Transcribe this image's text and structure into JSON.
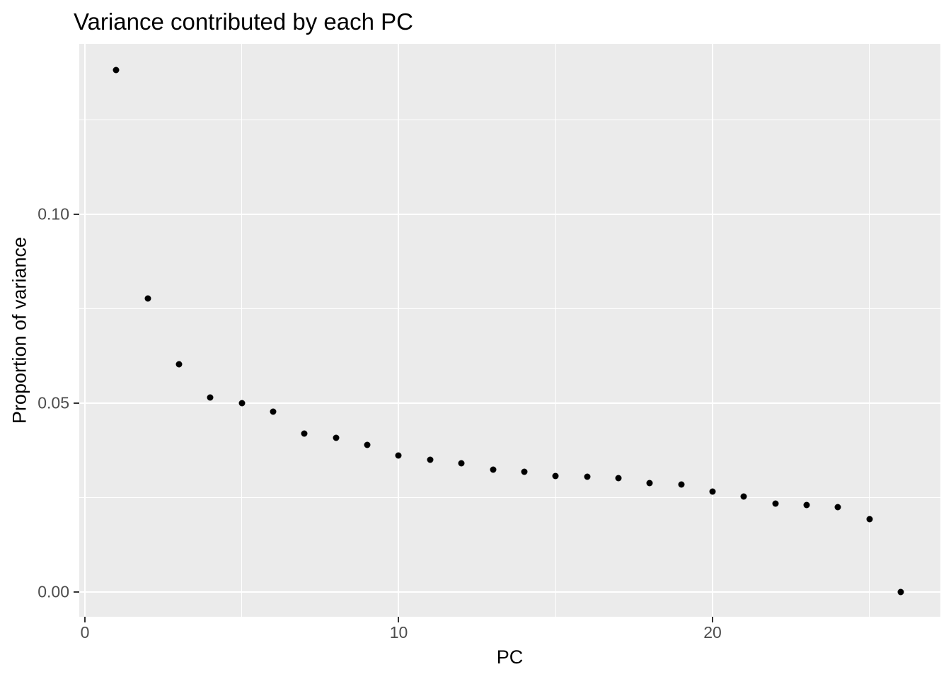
{
  "chart_data": {
    "type": "scatter",
    "title": "Variance contributed by each PC",
    "xlabel": "PC",
    "ylabel": "Proportion of variance",
    "x": [
      1,
      2,
      3,
      4,
      5,
      6,
      7,
      8,
      9,
      10,
      11,
      12,
      13,
      14,
      15,
      16,
      17,
      18,
      19,
      20,
      21,
      22,
      23,
      24,
      25,
      26
    ],
    "y": [
      0.1381,
      0.0777,
      0.0602,
      0.0514,
      0.05,
      0.0478,
      0.0419,
      0.0408,
      0.0389,
      0.0361,
      0.035,
      0.034,
      0.0323,
      0.0318,
      0.0307,
      0.0304,
      0.0301,
      0.0288,
      0.0285,
      0.0265,
      0.0253,
      0.0234,
      0.0229,
      0.0225,
      0.0193,
      0.0
    ],
    "xlim": [
      -0.18,
      27.26
    ],
    "ylim": [
      -0.0066,
      0.1451
    ],
    "x_axis": {
      "major_values": [
        0,
        10,
        20
      ],
      "major_labels": [
        "0",
        "10",
        "20"
      ],
      "minor_values": [
        5,
        15,
        25
      ]
    },
    "y_axis": {
      "major_values": [
        0.0,
        0.05,
        0.1
      ],
      "major_labels": [
        "0.00",
        "0.05",
        "0.10"
      ],
      "minor_values": [
        0.025,
        0.075,
        0.125
      ]
    },
    "legend": null,
    "grid": "on",
    "style": {
      "theme": "ggplot2-grey",
      "panel_bg": "#EBEBEB",
      "grid_color": "#FFFFFF",
      "point_color": "#000000",
      "tick_text_color": "#4D4D4D",
      "title_color": "#000000",
      "plot_bg": "#FFFFFF"
    }
  }
}
